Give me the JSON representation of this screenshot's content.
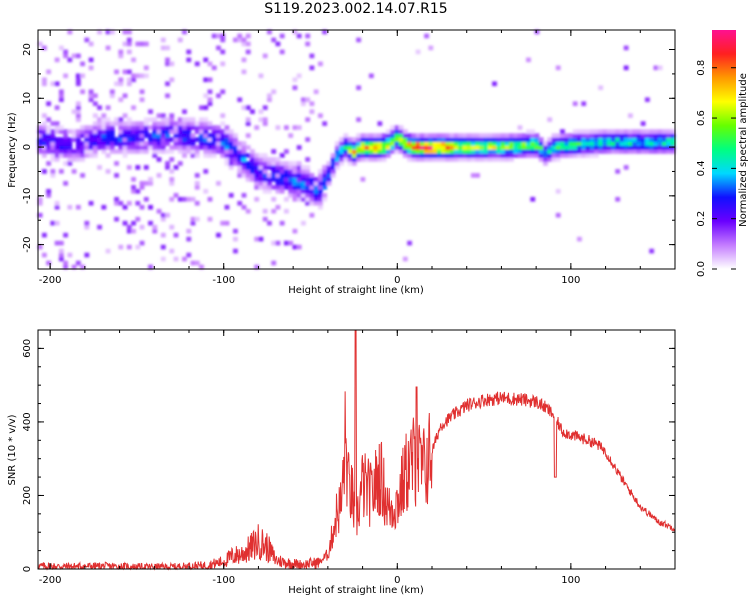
{
  "page_title": "S119.2023.002.14.07.R15",
  "colorbar": {
    "label": "Normalized spectral amplitude",
    "ticks": [
      "0.0",
      "0.2",
      "0.4",
      "0.6",
      "0.8"
    ],
    "colors": [
      "#ffffff",
      "#c47cff",
      "#6a00ff",
      "#1010ff",
      "#00d8ff",
      "#00ff80",
      "#66ff00",
      "#ffff00",
      "#ff9900",
      "#ff2020",
      "#ff1090"
    ]
  },
  "chart_data": [
    {
      "type": "heatmap",
      "title": "",
      "xlabel": "Height of straight line (km)",
      "ylabel": "Frequency (Hz)",
      "xlim": [
        -207,
        160
      ],
      "ylim": [
        -25,
        24
      ],
      "xticks": [
        "-200",
        "-100",
        "0",
        "100"
      ],
      "yticks": [
        "20",
        "10",
        "0",
        "-10",
        "-20"
      ],
      "grid": false,
      "ridge": {
        "x": [
          -205,
          -190,
          -170,
          -150,
          -130,
          -110,
          -100,
          -90,
          -80,
          -70,
          -60,
          -50,
          -45,
          -40,
          -35,
          -30,
          -25,
          -20,
          -10,
          -5,
          0,
          5,
          10,
          20,
          40,
          60,
          80,
          82,
          85,
          90,
          100,
          120,
          140,
          160
        ],
        "y": [
          1.5,
          0,
          2,
          2,
          2.5,
          2,
          1,
          -2,
          -5,
          -6,
          -7,
          -8,
          -9,
          -6,
          -2,
          0,
          -1,
          0,
          0,
          0.5,
          2,
          0.5,
          0,
          0,
          0,
          0,
          0.5,
          0,
          -1.5,
          0,
          0.5,
          1,
          1,
          1
        ],
        "amplitude": [
          0.3,
          0.25,
          0.3,
          0.3,
          0.3,
          0.35,
          0.35,
          0.35,
          0.3,
          0.35,
          0.35,
          0.35,
          0.4,
          0.35,
          0.4,
          0.5,
          0.7,
          0.75,
          0.8,
          0.7,
          0.75,
          0.7,
          0.85,
          0.9,
          0.65,
          0.65,
          0.55,
          0.6,
          0.35,
          0.5,
          0.5,
          0.45,
          0.45,
          0.45
        ]
      }
    },
    {
      "type": "line",
      "title": "",
      "xlabel": "Height of straight line (km)",
      "ylabel": "SNR (10 * v/v)",
      "xlim": [
        -207,
        160
      ],
      "ylim": [
        0,
        650
      ],
      "xticks": [
        "-200",
        "-100",
        "0",
        "100"
      ],
      "yticks": [
        "0",
        "200",
        "400",
        "600"
      ],
      "grid": false,
      "series": [
        {
          "color": "#e03030",
          "x": [
            -207,
            -190,
            -170,
            -150,
            -130,
            -110,
            -100,
            -95,
            -90,
            -85,
            -80,
            -75,
            -70,
            -65,
            -60,
            -55,
            -50,
            -45,
            -40,
            -38,
            -35,
            -32,
            -30,
            -28,
            -26,
            -24,
            -20,
            -15,
            -10,
            -5,
            0,
            5,
            10,
            15,
            20,
            25,
            30,
            40,
            50,
            60,
            70,
            80,
            85,
            90,
            95,
            100,
            110,
            115,
            120,
            125,
            130,
            140,
            150,
            160
          ],
          "y": [
            8,
            7,
            8,
            6,
            6,
            10,
            20,
            35,
            40,
            55,
            75,
            60,
            25,
            18,
            15,
            12,
            15,
            18,
            40,
            80,
            150,
            180,
            350,
            220,
            200,
            120,
            230,
            200,
            260,
            160,
            180,
            260,
            300,
            270,
            320,
            390,
            410,
            445,
            460,
            465,
            462,
            455,
            440,
            420,
            375,
            365,
            350,
            340,
            320,
            280,
            240,
            170,
            130,
            110
          ]
        }
      ]
    }
  ]
}
